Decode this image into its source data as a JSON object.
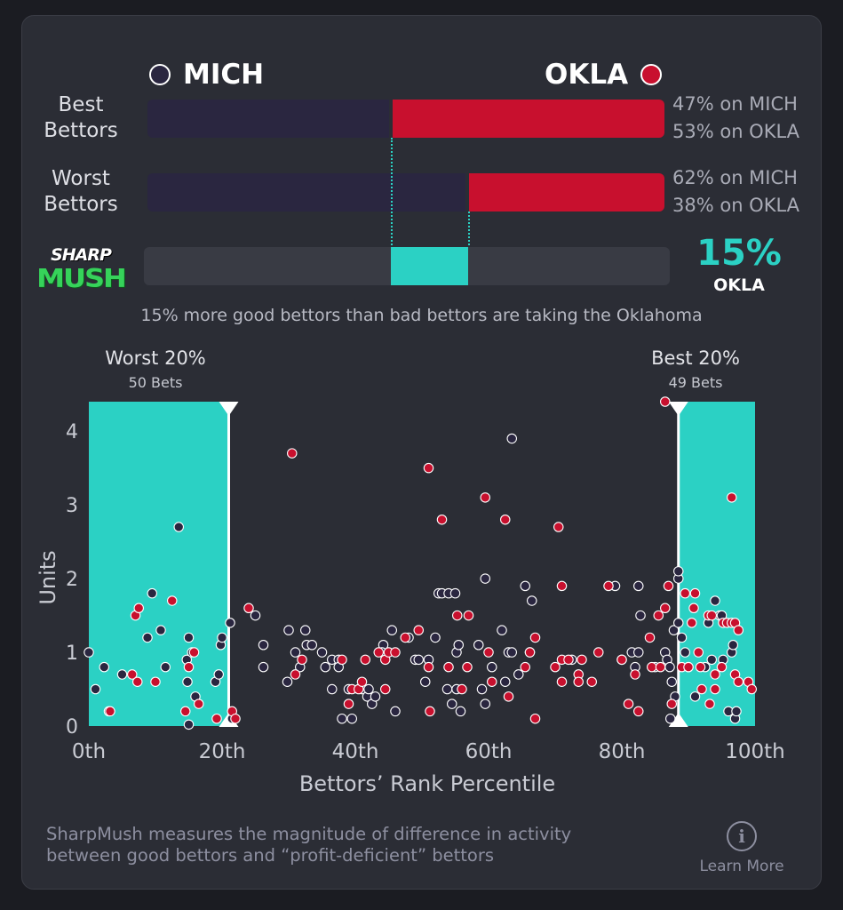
{
  "teams": {
    "away": {
      "name": "MICH",
      "color": "#2a2640"
    },
    "home": {
      "name": "OKLA",
      "color": "#c8102e"
    }
  },
  "accent_color": "#2bd1c4",
  "best_bettors": {
    "label_line1": "Best",
    "label_line2": "Bettors",
    "away_pct": 47,
    "home_pct": 53,
    "away_text": "47% on MICH",
    "home_text": "53% on OKLA"
  },
  "worst_bettors": {
    "label_line1": "Worst",
    "label_line2": "Bettors",
    "away_pct": 62,
    "home_pct": 38,
    "away_text": "62% on MICH",
    "home_text": "38% on OKLA"
  },
  "sharpmush": {
    "logo_top": "SHARP",
    "logo_bottom": "MUSH",
    "value": "15%",
    "team": "OKLA",
    "caption": "15% more good bettors than bad bettors are taking the Oklahoma"
  },
  "zones": {
    "worst": {
      "title": "Worst 20%",
      "subtitle": "50 Bets",
      "range": [
        0,
        21
      ]
    },
    "best": {
      "title": "Best 20%",
      "subtitle": "49 Bets",
      "range": [
        88.5,
        100
      ]
    }
  },
  "chart_data": {
    "type": "scatter",
    "xlabel": "Bettors’ Rank Percentile",
    "ylabel": "Units",
    "xlim": [
      0,
      100
    ],
    "ylim": [
      0,
      4.4
    ],
    "x_ticks": [
      0,
      20,
      40,
      60,
      80,
      100
    ],
    "x_tick_labels": [
      "0th",
      "20th",
      "40th",
      "60th",
      "80th",
      "100th"
    ],
    "y_ticks": [
      0,
      1,
      2,
      3,
      4
    ],
    "y_tick_labels": [
      "0",
      "1",
      "2",
      "3",
      "4"
    ],
    "series": [
      {
        "name": "MICH",
        "color": "#2a2640",
        "points": [
          [
            0,
            1
          ],
          [
            1,
            0.5
          ],
          [
            2.3,
            0.8
          ],
          [
            3,
            0.2
          ],
          [
            5,
            0.7
          ],
          [
            8.8,
            1.2
          ],
          [
            9.5,
            1.8
          ],
          [
            10.8,
            1.3
          ],
          [
            11.5,
            0.8
          ],
          [
            13.5,
            2.7
          ],
          [
            14.7,
            0.9
          ],
          [
            15,
            1.2
          ],
          [
            15.5,
            1.0
          ],
          [
            14.8,
            0.6
          ],
          [
            15,
            0.02
          ],
          [
            16,
            0.4
          ],
          [
            19,
            0.6
          ],
          [
            19.5,
            0.7
          ],
          [
            19.8,
            1.1
          ],
          [
            20,
            1.2
          ],
          [
            21.2,
            1.4
          ],
          [
            21.5,
            0.1
          ],
          [
            25,
            1.5
          ],
          [
            26.2,
            1.1
          ],
          [
            26.2,
            0.8
          ],
          [
            29.8,
            0.6
          ],
          [
            30,
            1.3
          ],
          [
            31,
            1.0
          ],
          [
            31.7,
            0.8
          ],
          [
            32.5,
            1.3
          ],
          [
            32.7,
            1.1
          ],
          [
            33.5,
            1.1
          ],
          [
            35,
            1.0
          ],
          [
            35.5,
            0.8
          ],
          [
            36.5,
            0.5
          ],
          [
            36.5,
            0.9
          ],
          [
            37.5,
            0.9
          ],
          [
            37.5,
            0.8
          ],
          [
            38,
            0.1
          ],
          [
            39.5,
            0.1
          ],
          [
            39,
            0.5
          ],
          [
            41,
            0.5
          ],
          [
            41.8,
            0.4
          ],
          [
            42.5,
            0.3
          ],
          [
            42,
            0.5
          ],
          [
            43,
            0.4
          ],
          [
            44.2,
            1.1
          ],
          [
            44,
            1.0
          ],
          [
            45.5,
            1.3
          ],
          [
            46,
            0.2
          ],
          [
            48,
            1.2
          ],
          [
            49,
            0.9
          ],
          [
            49.5,
            0.9
          ],
          [
            50.5,
            0.6
          ],
          [
            51,
            0.9
          ],
          [
            52,
            1.2
          ],
          [
            52.5,
            1.8
          ],
          [
            53,
            1.8
          ],
          [
            54,
            1.8
          ],
          [
            53.8,
            0.5
          ],
          [
            55,
            1.8
          ],
          [
            54.5,
            0.3
          ],
          [
            55.2,
            0.5
          ],
          [
            55.2,
            1.0
          ],
          [
            55.5,
            1.1
          ],
          [
            55.8,
            0.2
          ],
          [
            58.5,
            1.1
          ],
          [
            59,
            0.5
          ],
          [
            59.5,
            2.0
          ],
          [
            59.5,
            0.3
          ],
          [
            60.5,
            0.8
          ],
          [
            62,
            1.3
          ],
          [
            62.5,
            0.6
          ],
          [
            63,
            1.0
          ],
          [
            63.5,
            1.0
          ],
          [
            63.5,
            3.9
          ],
          [
            64.5,
            0.7
          ],
          [
            65.5,
            1.9
          ],
          [
            66.5,
            1.7
          ],
          [
            66.2,
            1.0
          ],
          [
            72.5,
            0.9
          ],
          [
            79,
            1.9
          ],
          [
            80,
            0.9
          ],
          [
            81.5,
            1.0
          ],
          [
            82,
            0.8
          ],
          [
            82.5,
            1.0
          ],
          [
            82.5,
            1.9
          ],
          [
            82.8,
            1.5
          ],
          [
            85,
            0.8
          ],
          [
            86.5,
            1.0
          ],
          [
            86.8,
            0.9
          ],
          [
            87.5,
            0.6
          ],
          [
            87.3,
            0.1
          ],
          [
            87.8,
            1.3
          ],
          [
            88,
            0.4
          ],
          [
            87.2,
            0.8
          ],
          [
            88.5,
            1.4
          ],
          [
            88.5,
            2.0
          ],
          [
            88.5,
            2.1
          ],
          [
            89,
            1.2
          ],
          [
            89.5,
            1.0
          ],
          [
            90,
            0.8
          ],
          [
            91,
            0.4
          ],
          [
            92.5,
            0.8
          ],
          [
            93,
            1.4
          ],
          [
            93.5,
            0.9
          ],
          [
            94,
            1.7
          ],
          [
            94.7,
            1.5
          ],
          [
            95,
            1.5
          ],
          [
            95.2,
            0.9
          ],
          [
            96,
            0.2
          ],
          [
            96.5,
            1.0
          ],
          [
            96.7,
            1.1
          ],
          [
            97,
            0.1
          ],
          [
            97.2,
            0.2
          ]
        ]
      },
      {
        "name": "OKLA",
        "color": "#c8102e",
        "points": [
          [
            3.2,
            0.2
          ],
          [
            6.5,
            0.7
          ],
          [
            7,
            1.5
          ],
          [
            7.5,
            1.6
          ],
          [
            7.3,
            0.6
          ],
          [
            10,
            0.6
          ],
          [
            12.5,
            1.7
          ],
          [
            14.5,
            0.2
          ],
          [
            15,
            0.8
          ],
          [
            15.8,
            1.0
          ],
          [
            16.5,
            0.3
          ],
          [
            19.2,
            0.1
          ],
          [
            21.5,
            0.2
          ],
          [
            22,
            0.1
          ],
          [
            24,
            1.6
          ],
          [
            30.5,
            3.7
          ],
          [
            31,
            0.7
          ],
          [
            32,
            0.9
          ],
          [
            38,
            0.9
          ],
          [
            39,
            0.3
          ],
          [
            39.5,
            0.5
          ],
          [
            40.5,
            0.5
          ],
          [
            41,
            0.6
          ],
          [
            41.5,
            0.9
          ],
          [
            43.5,
            1.0
          ],
          [
            44.5,
            0.9
          ],
          [
            44.5,
            0.5
          ],
          [
            45,
            1.0
          ],
          [
            46,
            1.0
          ],
          [
            47.5,
            1.2
          ],
          [
            49.5,
            1.3
          ],
          [
            51,
            3.5
          ],
          [
            51.2,
            0.2
          ],
          [
            51,
            0.8
          ],
          [
            53,
            2.8
          ],
          [
            54,
            0.8
          ],
          [
            55.3,
            1.5
          ],
          [
            56,
            0.5
          ],
          [
            57,
            1.5
          ],
          [
            56.8,
            0.8
          ],
          [
            59.5,
            3.1
          ],
          [
            60,
            1.0
          ],
          [
            60.5,
            0.6
          ],
          [
            62.5,
            2.8
          ],
          [
            63,
            0.4
          ],
          [
            65.5,
            0.8
          ],
          [
            66.2,
            1.0
          ],
          [
            67,
            1.2
          ],
          [
            67,
            0.1
          ],
          [
            70,
            0.8
          ],
          [
            70.5,
            2.7
          ],
          [
            71,
            0.9
          ],
          [
            71,
            0.6
          ],
          [
            71,
            1.9
          ],
          [
            72,
            0.9
          ],
          [
            73.5,
            0.7
          ],
          [
            73.5,
            0.6
          ],
          [
            74,
            0.9
          ],
          [
            75.5,
            0.6
          ],
          [
            76.5,
            1.0
          ],
          [
            78,
            1.9
          ],
          [
            80,
            0.9
          ],
          [
            81,
            0.3
          ],
          [
            82,
            0.7
          ],
          [
            82.5,
            0.2
          ],
          [
            84.2,
            1.2
          ],
          [
            84.5,
            0.8
          ],
          [
            85.5,
            1.5
          ],
          [
            85.8,
            0.8
          ],
          [
            86.5,
            1.6
          ],
          [
            86.5,
            4.4
          ],
          [
            87,
            1.9
          ],
          [
            87.5,
            0.3
          ],
          [
            89,
            0.8
          ],
          [
            89.5,
            1.8
          ],
          [
            90,
            0.8
          ],
          [
            90.5,
            1.4
          ],
          [
            90.8,
            1.6
          ],
          [
            91,
            1.8
          ],
          [
            91.5,
            1.0
          ],
          [
            91.8,
            0.8
          ],
          [
            92,
            0.5
          ],
          [
            93,
            1.5
          ],
          [
            93.2,
            0.3
          ],
          [
            93.5,
            1.5
          ],
          [
            94,
            0.7
          ],
          [
            94,
            0.5
          ],
          [
            95,
            0.8
          ],
          [
            95.2,
            1.4
          ],
          [
            95.8,
            1.4
          ],
          [
            96.5,
            3.1
          ],
          [
            96.5,
            1.4
          ],
          [
            97,
            1.4
          ],
          [
            97,
            0.7
          ],
          [
            97.5,
            1.3
          ],
          [
            97.5,
            0.6
          ],
          [
            99,
            0.6
          ],
          [
            99.5,
            0.5
          ]
        ]
      }
    ]
  },
  "footer": {
    "line1": "SharpMush measures the magnitude of difference in activity",
    "line2": "between good bettors and “profit-deficient” bettors",
    "info_glyph": "i",
    "learn_more": "Learn More"
  }
}
